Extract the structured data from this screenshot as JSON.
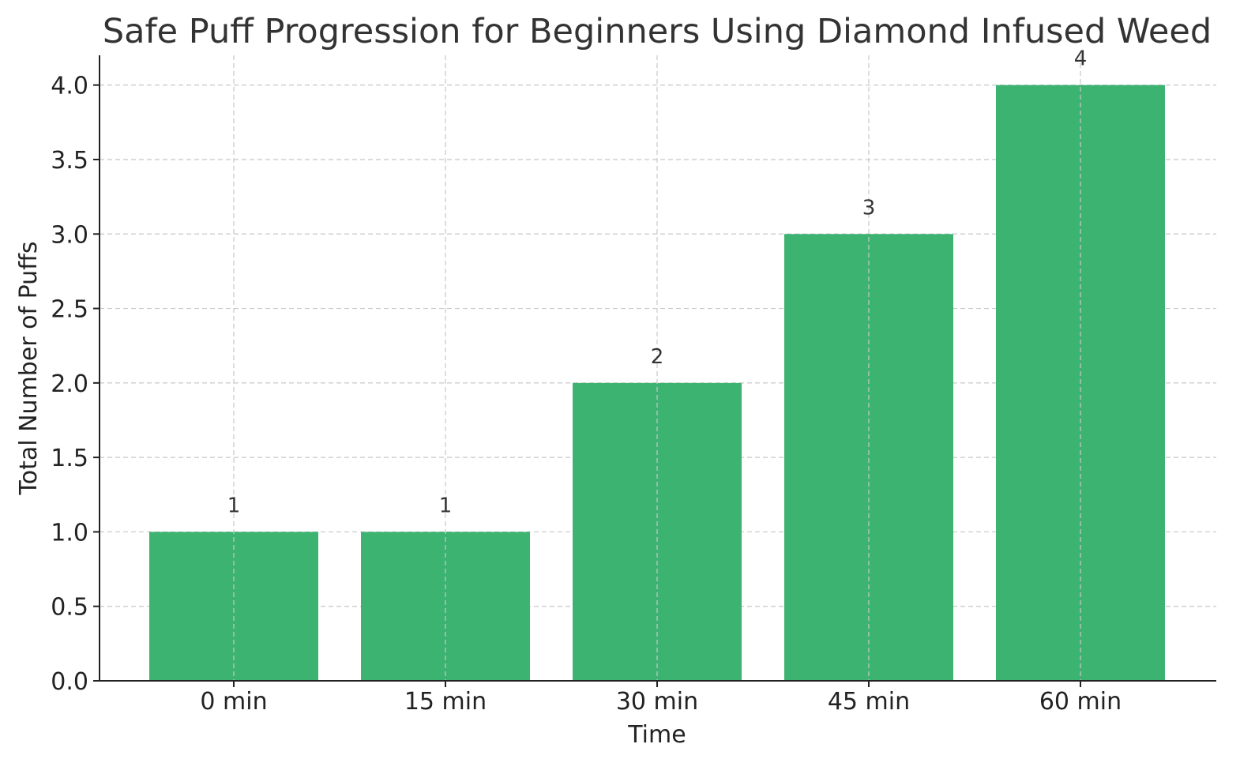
{
  "chart_data": {
    "type": "bar",
    "title": "Safe Puff Progression for Beginners Using Diamond Infused Weed",
    "xlabel": "Time",
    "ylabel": "Total Number of Puffs",
    "categories": [
      "0 min",
      "15 min",
      "30 min",
      "45 min",
      "60 min"
    ],
    "values": [
      1,
      1,
      2,
      3,
      4
    ],
    "data_labels": [
      "1",
      "1",
      "2",
      "3",
      "4"
    ],
    "ylim": [
      0,
      4.2
    ],
    "yticks": [
      0.0,
      0.5,
      1.0,
      1.5,
      2.0,
      2.5,
      3.0,
      3.5,
      4.0
    ],
    "ytick_labels": [
      "0.0",
      "0.5",
      "1.0",
      "1.5",
      "2.0",
      "2.5",
      "3.0",
      "3.5",
      "4.0"
    ],
    "grid": true,
    "bar_color": "#3cb371"
  }
}
